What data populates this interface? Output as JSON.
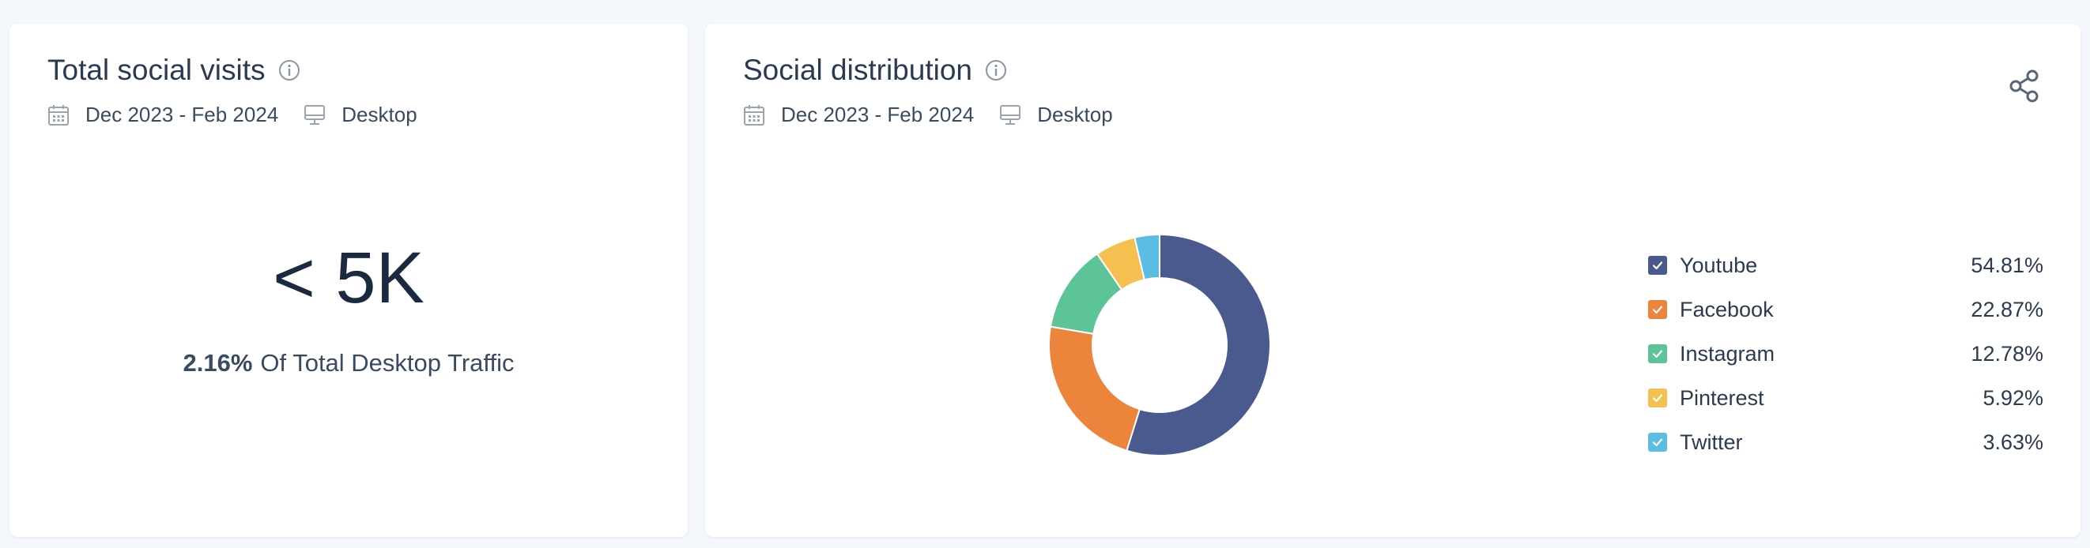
{
  "left_card": {
    "title": "Total social visits",
    "date_range": "Dec 2023 - Feb 2024",
    "device": "Desktop",
    "value": "< 5K",
    "share_percent": "2.16%",
    "share_text": "Of Total Desktop Traffic"
  },
  "right_card": {
    "title": "Social distribution",
    "date_range": "Dec 2023 - Feb 2024",
    "device": "Desktop",
    "icons": {
      "info": "info-icon",
      "calendar": "calendar-icon",
      "device": "desktop-icon",
      "share": "share-icon"
    }
  },
  "chart_data": {
    "type": "pie",
    "donut": true,
    "legend_placement": "right",
    "series": [
      {
        "name": "Youtube",
        "value": 54.81,
        "label": "54.81%",
        "color": "#4a5a8e"
      },
      {
        "name": "Facebook",
        "value": 22.87,
        "label": "22.87%",
        "color": "#ed843b"
      },
      {
        "name": "Instagram",
        "value": 12.78,
        "label": "12.78%",
        "color": "#5cc497"
      },
      {
        "name": "Pinterest",
        "value": 5.92,
        "label": "5.92%",
        "color": "#f5c04f"
      },
      {
        "name": "Twitter",
        "value": 3.63,
        "label": "3.63%",
        "color": "#5bbde4"
      }
    ]
  }
}
